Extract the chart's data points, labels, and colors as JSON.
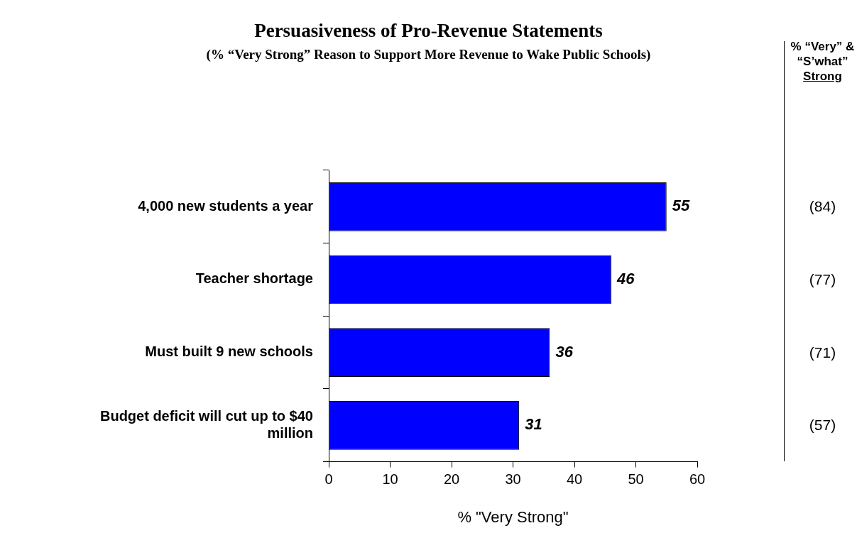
{
  "chart_data": {
    "type": "bar",
    "orientation": "horizontal",
    "title": "Persuasiveness of Pro-Revenue Statements",
    "subtitle": "(% “Very Strong” Reason to Support More Revenue to Wake Public Schools)",
    "xlabel": "% \"Very Strong\"",
    "categories": [
      "4,000 new students a year",
      "Teacher shortage",
      "Must built 9 new schools",
      "Budget deficit will cut up to $40 million"
    ],
    "values": [
      55,
      46,
      36,
      31
    ],
    "color": "#0000ff",
    "data_labels": true,
    "xlim": [
      0,
      60
    ],
    "xticks": [
      0,
      10,
      20,
      30,
      40,
      50,
      60
    ],
    "grid": false,
    "legend": false,
    "annotations": [
      "% “Very” & “S’what” Strong",
      "(84)",
      "(77)",
      "(71)",
      "(57)"
    ]
  }
}
